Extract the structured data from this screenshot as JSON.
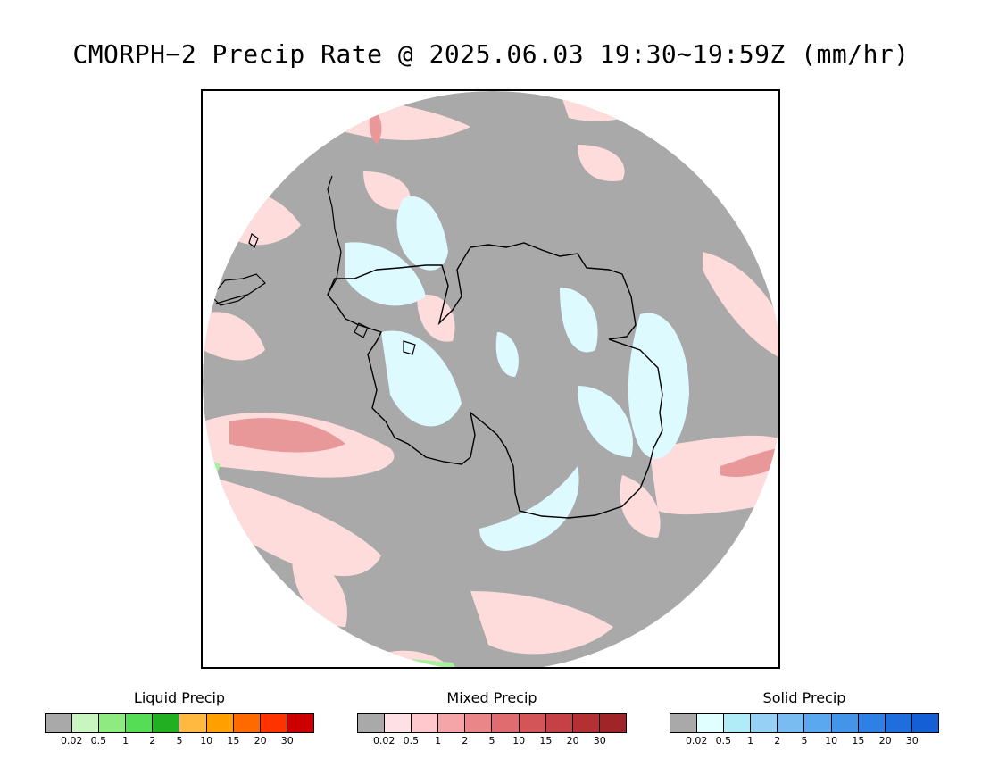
{
  "title": "CMORPH−2 Precip Rate @ 2025.06.03 19:30~19:59Z (mm/hr)",
  "colors": {
    "no_precip": "#a9a9a9",
    "mixed_light": "#ffdcdc",
    "mixed_mid": "#f0a0a0",
    "mixed_heavy": "#e07070",
    "solid_light": "#dcfaff",
    "liquid_light": "#a8f0a0",
    "coastline": "#000000"
  },
  "legends": [
    {
      "label": "Liquid Precip",
      "colors": [
        "#a9a9a9",
        "#c8f5c0",
        "#90ea82",
        "#55dd55",
        "#22b022",
        "#ffb840",
        "#ffa000",
        "#ff6a00",
        "#ff3300",
        "#cc0000"
      ],
      "ticks": [
        "0.02",
        "0.5",
        "1",
        "2",
        "5",
        "10",
        "15",
        "20",
        "30"
      ]
    },
    {
      "label": "Mixed Precip",
      "colors": [
        "#a9a9a9",
        "#ffe0e4",
        "#ffc8cc",
        "#f5a5a8",
        "#ea8688",
        "#e06c6f",
        "#d45558",
        "#c54145",
        "#b33034",
        "#a02529"
      ],
      "ticks": [
        "0.02",
        "0.5",
        "1",
        "2",
        "5",
        "10",
        "15",
        "20",
        "30"
      ]
    },
    {
      "label": "Solid Precip",
      "colors": [
        "#a9a9a9",
        "#e0ffff",
        "#b0ecf8",
        "#96d0f5",
        "#78bcf2",
        "#5aa8ef",
        "#4494ea",
        "#2e80e5",
        "#1e6ede",
        "#145fd5"
      ],
      "ticks": [
        "0.02",
        "0.5",
        "1",
        "2",
        "5",
        "10",
        "15",
        "20",
        "30"
      ]
    }
  ]
}
